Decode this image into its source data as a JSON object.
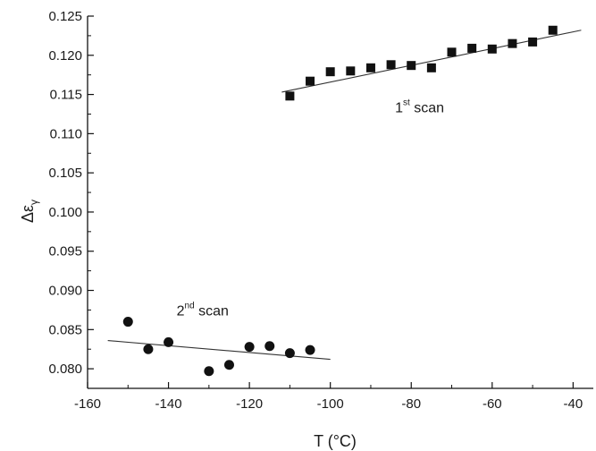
{
  "chart_data": {
    "type": "scatter",
    "title": "",
    "xlabel": "T (°C)",
    "ylabel_main": "Δε",
    "ylabel_sub": "γ",
    "xlim": [
      -160,
      -35
    ],
    "ylim": [
      0.0775,
      0.125
    ],
    "x_ticks": [
      -160,
      -140,
      -120,
      -100,
      -80,
      -60,
      -40
    ],
    "y_ticks": [
      0.08,
      0.085,
      0.09,
      0.095,
      0.1,
      0.105,
      0.11,
      0.115,
      0.12,
      0.125
    ],
    "grid": false,
    "series": [
      {
        "marker": "square",
        "color": "#111111",
        "x": [
          -110,
          -105,
          -100,
          -95,
          -90,
          -85,
          -80,
          -75,
          -70,
          -65,
          -60,
          -55,
          -50,
          -45
        ],
        "y": [
          0.1148,
          0.1167,
          0.1179,
          0.118,
          0.1184,
          0.1188,
          0.1187,
          0.1184,
          0.1204,
          0.1209,
          0.1208,
          0.1215,
          0.1217,
          0.1232
        ],
        "fit": {
          "x": [
            -112,
            -38
          ],
          "y": [
            0.1153,
            0.1232
          ]
        }
      },
      {
        "marker": "circle",
        "color": "#111111",
        "x": [
          -150,
          -145,
          -140,
          -130,
          -125,
          -120,
          -115,
          -110,
          -105
        ],
        "y": [
          0.086,
          0.0825,
          0.0834,
          0.0797,
          0.0805,
          0.0828,
          0.0829,
          0.082,
          0.0824
        ],
        "fit": {
          "x": [
            -155,
            -100
          ],
          "y": [
            0.0836,
            0.0812
          ]
        }
      }
    ],
    "annotations": [
      {
        "base": "1",
        "sup": "st",
        "rest": " scan",
        "x": -84,
        "y": 0.1127
      },
      {
        "base": "2",
        "sup": "nd",
        "rest": " scan",
        "x": -138,
        "y": 0.0868
      }
    ]
  }
}
